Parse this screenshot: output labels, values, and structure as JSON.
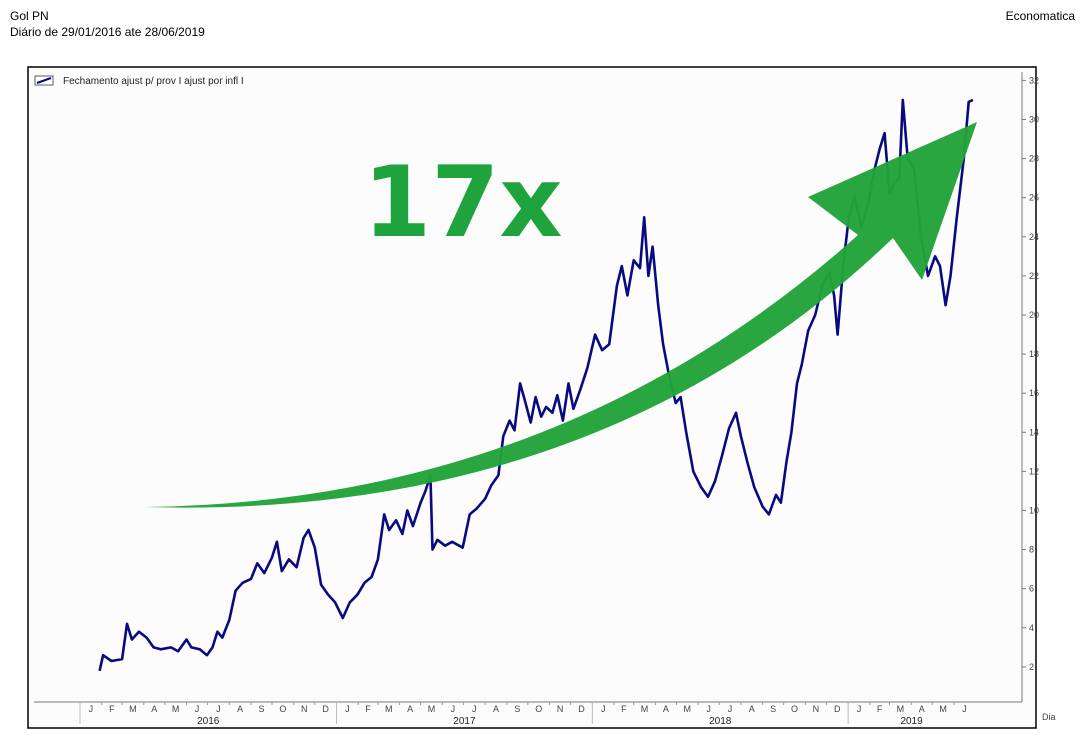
{
  "header": {
    "title": "Gol PN",
    "subtitle": "Diário de 29/01/2016 ate 28/06/2019",
    "brand": "Economatica"
  },
  "colors": {
    "series": "#0a0a80",
    "arrow": "#22a33a",
    "annotation": "#1fa33c",
    "plot_background": "#fcfcfc"
  },
  "chart_data": {
    "type": "line",
    "legend": {
      "label": "Fechamento  ajust p/  prov  I ajust por infl  I",
      "placement": "top-left"
    },
    "x_axis_unit": "Dia",
    "ylim": [
      0,
      33
    ],
    "yticks": [
      2,
      4,
      6,
      8,
      10,
      12,
      14,
      16,
      18,
      20,
      22,
      24,
      26,
      28,
      30,
      32
    ],
    "month_ticks": {
      "2016": [
        "J",
        "F",
        "M",
        "A",
        "M",
        "J",
        "J",
        "A",
        "S",
        "O",
        "N",
        "D"
      ],
      "2017": [
        "J",
        "F",
        "M",
        "A",
        "M",
        "J",
        "J",
        "A",
        "S",
        "O",
        "N",
        "D"
      ],
      "2018": [
        "J",
        "F",
        "M",
        "A",
        "M",
        "J",
        "J",
        "A",
        "S",
        "O",
        "N",
        "D"
      ],
      "2019": [
        "J",
        "F",
        "M",
        "A",
        "M",
        "J"
      ]
    },
    "years": [
      "2016",
      "2017",
      "2018",
      "2019"
    ],
    "annotation": {
      "text": "17x",
      "kind": "upward-arrow"
    },
    "series": [
      {
        "name": "Fechamento",
        "points": [
          [
            "2016-01-29",
            1.8
          ],
          [
            "2016-02-03",
            2.6
          ],
          [
            "2016-02-15",
            2.3
          ],
          [
            "2016-03-01",
            2.4
          ],
          [
            "2016-03-08",
            4.2
          ],
          [
            "2016-03-15",
            3.4
          ],
          [
            "2016-03-25",
            3.8
          ],
          [
            "2016-04-05",
            3.5
          ],
          [
            "2016-04-15",
            3.0
          ],
          [
            "2016-04-25",
            2.9
          ],
          [
            "2016-05-10",
            3.0
          ],
          [
            "2016-05-20",
            2.8
          ],
          [
            "2016-06-01",
            3.4
          ],
          [
            "2016-06-08",
            3.0
          ],
          [
            "2016-06-20",
            2.9
          ],
          [
            "2016-06-30",
            2.6
          ],
          [
            "2016-07-08",
            3.0
          ],
          [
            "2016-07-15",
            3.8
          ],
          [
            "2016-07-22",
            3.5
          ],
          [
            "2016-08-01",
            4.4
          ],
          [
            "2016-08-10",
            5.9
          ],
          [
            "2016-08-20",
            6.3
          ],
          [
            "2016-09-01",
            6.5
          ],
          [
            "2016-09-10",
            7.3
          ],
          [
            "2016-09-20",
            6.8
          ],
          [
            "2016-10-01",
            7.6
          ],
          [
            "2016-10-08",
            8.4
          ],
          [
            "2016-10-15",
            6.9
          ],
          [
            "2016-10-25",
            7.5
          ],
          [
            "2016-11-05",
            7.1
          ],
          [
            "2016-11-15",
            8.6
          ],
          [
            "2016-11-22",
            9.0
          ],
          [
            "2016-12-01",
            8.1
          ],
          [
            "2016-12-10",
            6.2
          ],
          [
            "2016-12-20",
            5.7
          ],
          [
            "2016-12-30",
            5.3
          ],
          [
            "2017-01-10",
            4.5
          ],
          [
            "2017-01-20",
            5.3
          ],
          [
            "2017-01-31",
            5.7
          ],
          [
            "2017-02-10",
            6.3
          ],
          [
            "2017-02-20",
            6.6
          ],
          [
            "2017-03-01",
            7.5
          ],
          [
            "2017-03-10",
            9.8
          ],
          [
            "2017-03-17",
            9.0
          ],
          [
            "2017-03-27",
            9.5
          ],
          [
            "2017-04-05",
            8.8
          ],
          [
            "2017-04-12",
            10.0
          ],
          [
            "2017-04-20",
            9.2
          ],
          [
            "2017-05-01",
            10.4
          ],
          [
            "2017-05-08",
            11.0
          ],
          [
            "2017-05-15",
            11.8
          ],
          [
            "2017-05-18",
            8.0
          ],
          [
            "2017-05-25",
            8.5
          ],
          [
            "2017-06-05",
            8.2
          ],
          [
            "2017-06-15",
            8.4
          ],
          [
            "2017-06-30",
            8.1
          ],
          [
            "2017-07-10",
            9.8
          ],
          [
            "2017-07-20",
            10.1
          ],
          [
            "2017-08-01",
            10.6
          ],
          [
            "2017-08-10",
            11.3
          ],
          [
            "2017-08-20",
            11.8
          ],
          [
            "2017-08-27",
            13.8
          ],
          [
            "2017-09-05",
            14.6
          ],
          [
            "2017-09-12",
            14.1
          ],
          [
            "2017-09-20",
            16.5
          ],
          [
            "2017-09-27",
            15.6
          ],
          [
            "2017-10-05",
            14.5
          ],
          [
            "2017-10-12",
            15.8
          ],
          [
            "2017-10-20",
            14.8
          ],
          [
            "2017-10-27",
            15.3
          ],
          [
            "2017-11-05",
            15.0
          ],
          [
            "2017-11-12",
            15.9
          ],
          [
            "2017-11-20",
            14.6
          ],
          [
            "2017-11-28",
            16.5
          ],
          [
            "2017-12-05",
            15.2
          ],
          [
            "2017-12-15",
            16.2
          ],
          [
            "2017-12-25",
            17.3
          ],
          [
            "2018-01-05",
            19.0
          ],
          [
            "2018-01-15",
            18.2
          ],
          [
            "2018-01-25",
            18.5
          ],
          [
            "2018-02-05",
            21.5
          ],
          [
            "2018-02-12",
            22.5
          ],
          [
            "2018-02-20",
            21.0
          ],
          [
            "2018-03-01",
            22.8
          ],
          [
            "2018-03-10",
            22.4
          ],
          [
            "2018-03-16",
            25.0
          ],
          [
            "2018-03-22",
            22.0
          ],
          [
            "2018-03-28",
            23.5
          ],
          [
            "2018-04-05",
            20.5
          ],
          [
            "2018-04-12",
            18.5
          ],
          [
            "2018-04-20",
            17.0
          ],
          [
            "2018-04-30",
            15.5
          ],
          [
            "2018-05-07",
            15.8
          ],
          [
            "2018-05-15",
            14.0
          ],
          [
            "2018-05-25",
            12.0
          ],
          [
            "2018-06-05",
            11.2
          ],
          [
            "2018-06-15",
            10.7
          ],
          [
            "2018-06-25",
            11.5
          ],
          [
            "2018-07-05",
            12.8
          ],
          [
            "2018-07-15",
            14.2
          ],
          [
            "2018-07-25",
            15.0
          ],
          [
            "2018-08-01",
            13.8
          ],
          [
            "2018-08-10",
            12.5
          ],
          [
            "2018-08-20",
            11.2
          ],
          [
            "2018-09-01",
            10.2
          ],
          [
            "2018-09-10",
            9.8
          ],
          [
            "2018-09-20",
            10.8
          ],
          [
            "2018-09-27",
            10.4
          ],
          [
            "2018-10-05",
            12.5
          ],
          [
            "2018-10-12",
            14.0
          ],
          [
            "2018-10-20",
            16.5
          ],
          [
            "2018-10-27",
            17.5
          ],
          [
            "2018-11-05",
            19.2
          ],
          [
            "2018-11-15",
            20.0
          ],
          [
            "2018-11-25",
            21.5
          ],
          [
            "2018-12-05",
            22.2
          ],
          [
            "2018-12-12",
            21.0
          ],
          [
            "2018-12-17",
            19.0
          ],
          [
            "2018-12-25",
            22.5
          ],
          [
            "2019-01-02",
            25.0
          ],
          [
            "2019-01-10",
            26.0
          ],
          [
            "2019-01-20",
            24.5
          ],
          [
            "2019-01-30",
            25.8
          ],
          [
            "2019-02-08",
            27.5
          ],
          [
            "2019-02-15",
            28.5
          ],
          [
            "2019-02-22",
            29.3
          ],
          [
            "2019-03-01",
            26.2
          ],
          [
            "2019-03-08",
            26.8
          ],
          [
            "2019-03-15",
            27.0
          ],
          [
            "2019-03-20",
            31.0
          ],
          [
            "2019-03-27",
            28.0
          ],
          [
            "2019-04-05",
            27.5
          ],
          [
            "2019-04-15",
            24.0
          ],
          [
            "2019-04-25",
            22.0
          ],
          [
            "2019-05-05",
            23.0
          ],
          [
            "2019-05-12",
            22.5
          ],
          [
            "2019-05-20",
            20.5
          ],
          [
            "2019-05-27",
            22.0
          ],
          [
            "2019-06-05",
            25.0
          ],
          [
            "2019-06-15",
            28.0
          ],
          [
            "2019-06-22",
            30.9
          ],
          [
            "2019-06-28",
            31.0
          ]
        ]
      }
    ]
  }
}
